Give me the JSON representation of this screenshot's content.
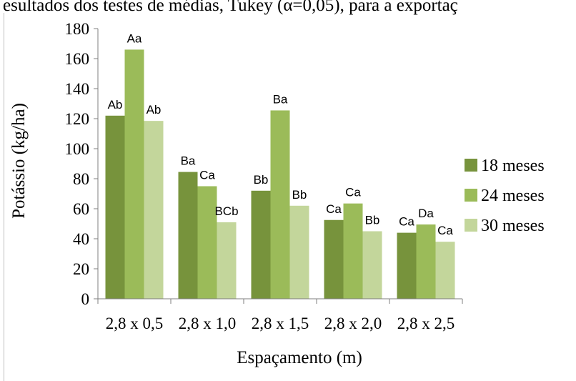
{
  "caption": "esultados dos testes de médias, Tukey (α=0,05), para a exportaç",
  "chart_data": {
    "type": "bar",
    "title": "",
    "xlabel": "Espaçamento (m)",
    "ylabel": "Potássio (kg/ha)",
    "ylim": [
      0,
      180
    ],
    "yticks": [
      0,
      20,
      40,
      60,
      80,
      100,
      120,
      140,
      160,
      180
    ],
    "grid": false,
    "legend_position": "right",
    "categories": [
      "2,8 x 0,5",
      "2,8 x 1,0",
      "2,8 x 1,5",
      "2,8 x 2,0",
      "2,8 x 2,5"
    ],
    "series": [
      {
        "name": "18 meses",
        "color": "#77933c",
        "values": [
          122,
          84.5,
          72,
          52.5,
          44
        ],
        "labels": [
          "Ab",
          "Ba",
          "Bb",
          "Ca",
          "Ca"
        ]
      },
      {
        "name": "24 meses",
        "color": "#9bbb59",
        "values": [
          166,
          75,
          125.5,
          63.5,
          49.5
        ],
        "labels": [
          "Aa",
          "Ca",
          "Ba",
          "Ca",
          "Da"
        ]
      },
      {
        "name": "30 meses",
        "color": "#c3d69b",
        "values": [
          118.5,
          51,
          62,
          45,
          38
        ],
        "labels": [
          "Ab",
          "BCb",
          "Bb",
          "Bb",
          "Ca"
        ]
      }
    ]
  }
}
